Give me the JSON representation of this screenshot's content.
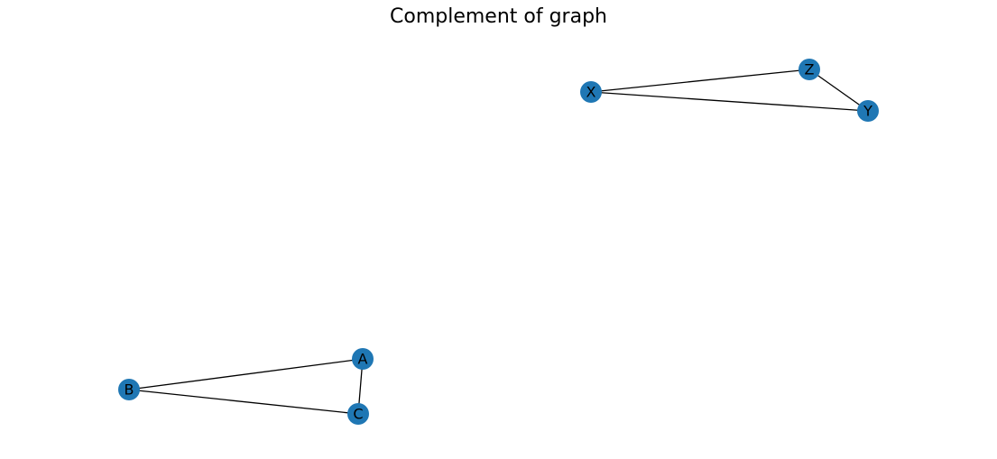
{
  "title": "Complement of graph",
  "colors": {
    "node_fill": "#1f77b4",
    "edge_stroke": "#000000",
    "label_text": "#000000",
    "background": "#ffffff"
  },
  "graph": {
    "nodes": [
      {
        "id": "A",
        "label": "A"
      },
      {
        "id": "B",
        "label": "B"
      },
      {
        "id": "C",
        "label": "C"
      },
      {
        "id": "X",
        "label": "X"
      },
      {
        "id": "Y",
        "label": "Y"
      },
      {
        "id": "Z",
        "label": "Z"
      }
    ],
    "edges": [
      [
        "B",
        "A"
      ],
      [
        "B",
        "C"
      ],
      [
        "A",
        "C"
      ],
      [
        "X",
        "Z"
      ],
      [
        "X",
        "Y"
      ],
      [
        "Z",
        "Y"
      ]
    ]
  }
}
